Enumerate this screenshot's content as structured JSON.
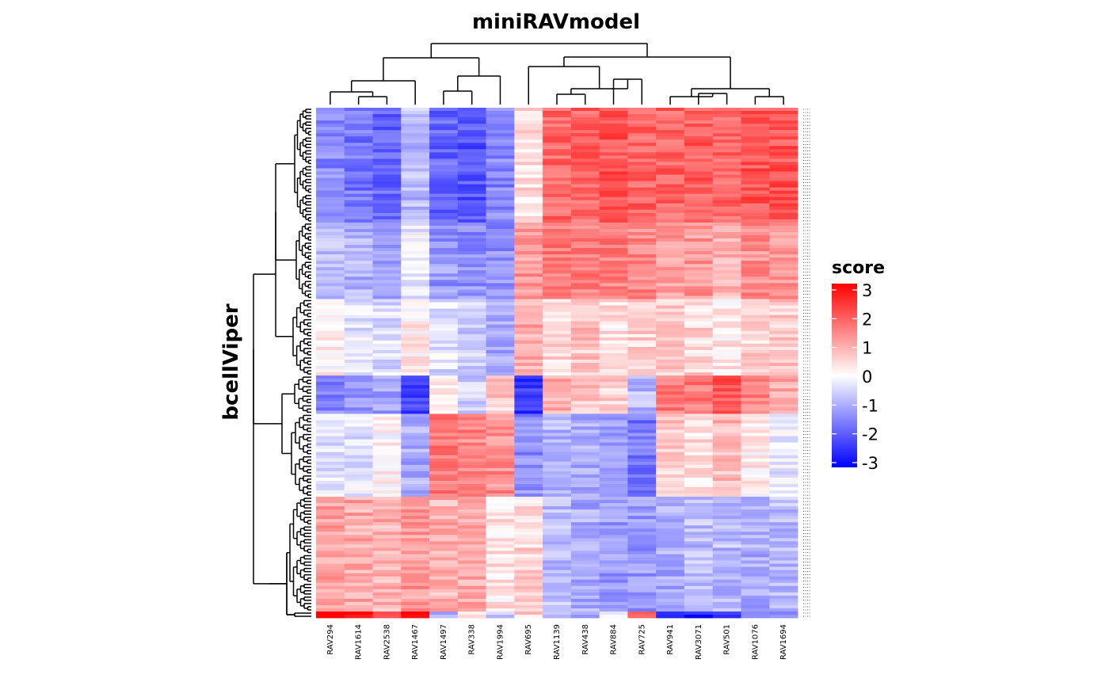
{
  "chart_data": {
    "type": "heatmap",
    "title": "miniRAVmodel",
    "ylabel": "bcellViper",
    "columns": [
      "RAV294",
      "RAV1614",
      "RAV2538",
      "RAV1467",
      "RAV1497",
      "RAV338",
      "RAV1994",
      "RAV695",
      "RAV1139",
      "RAV438",
      "RAV884",
      "RAV725",
      "RAV941",
      "RAV3071",
      "RAV501",
      "RAV1076",
      "RAV1694"
    ],
    "row_count": 160,
    "legend": {
      "title": "score",
      "ticks": [
        "3",
        "2",
        "1",
        "0",
        "-1",
        "-2",
        "-3"
      ],
      "min": -3,
      "max": 3,
      "colors": {
        "low": "#0000ff",
        "mid": "#ffffff",
        "high": "#ff0000"
      }
    },
    "row_blocks": [
      {
        "rows": 36,
        "values": [
          -1.4,
          -1.6,
          -1.8,
          -0.8,
          -1.8,
          -2.0,
          -1.4,
          0.4,
          1.8,
          1.8,
          2.0,
          1.8,
          1.8,
          1.9,
          1.8,
          2.0,
          2.0
        ]
      },
      {
        "rows": 24,
        "values": [
          -0.7,
          -0.9,
          -1.1,
          -0.2,
          -1.2,
          -1.3,
          -1.3,
          1.2,
          1.6,
          1.5,
          1.5,
          1.4,
          1.2,
          1.2,
          0.9,
          1.3,
          1.2
        ]
      },
      {
        "rows": 24,
        "values": [
          0.1,
          -0.3,
          -0.4,
          0.2,
          -0.4,
          -0.6,
          -1.0,
          1.0,
          0.5,
          0.7,
          0.3,
          0.5,
          0.6,
          0.5,
          0.3,
          0.5,
          0.6
        ]
      },
      {
        "rows": 12,
        "values": [
          -1.4,
          -1.2,
          -1.1,
          -2.2,
          0.3,
          -0.6,
          0.6,
          -2.4,
          0.9,
          0.7,
          0.6,
          -0.8,
          1.5,
          1.6,
          2.0,
          1.4,
          1.0
        ]
      },
      {
        "rows": 26,
        "values": [
          -0.3,
          -0.3,
          0.1,
          -1.0,
          1.6,
          1.4,
          1.3,
          -1.3,
          -0.8,
          -1.0,
          -1.2,
          -1.6,
          0.6,
          0.4,
          0.8,
          0.2,
          -0.2
        ]
      },
      {
        "rows": 36,
        "values": [
          1.1,
          1.0,
          0.9,
          1.2,
          0.9,
          1.0,
          0.3,
          0.5,
          -0.8,
          -1.0,
          -1.2,
          -1.2,
          -1.0,
          -0.8,
          -0.8,
          -1.0,
          -0.8
        ]
      },
      {
        "rows": 2,
        "values": [
          2.8,
          2.8,
          2.2,
          2.8,
          -1.0,
          0.4,
          -0.8,
          0.5,
          -0.8,
          -0.9,
          -0.5,
          1.6,
          -2.2,
          -2.6,
          -2.6,
          -1.6,
          -1.6
        ]
      }
    ]
  }
}
